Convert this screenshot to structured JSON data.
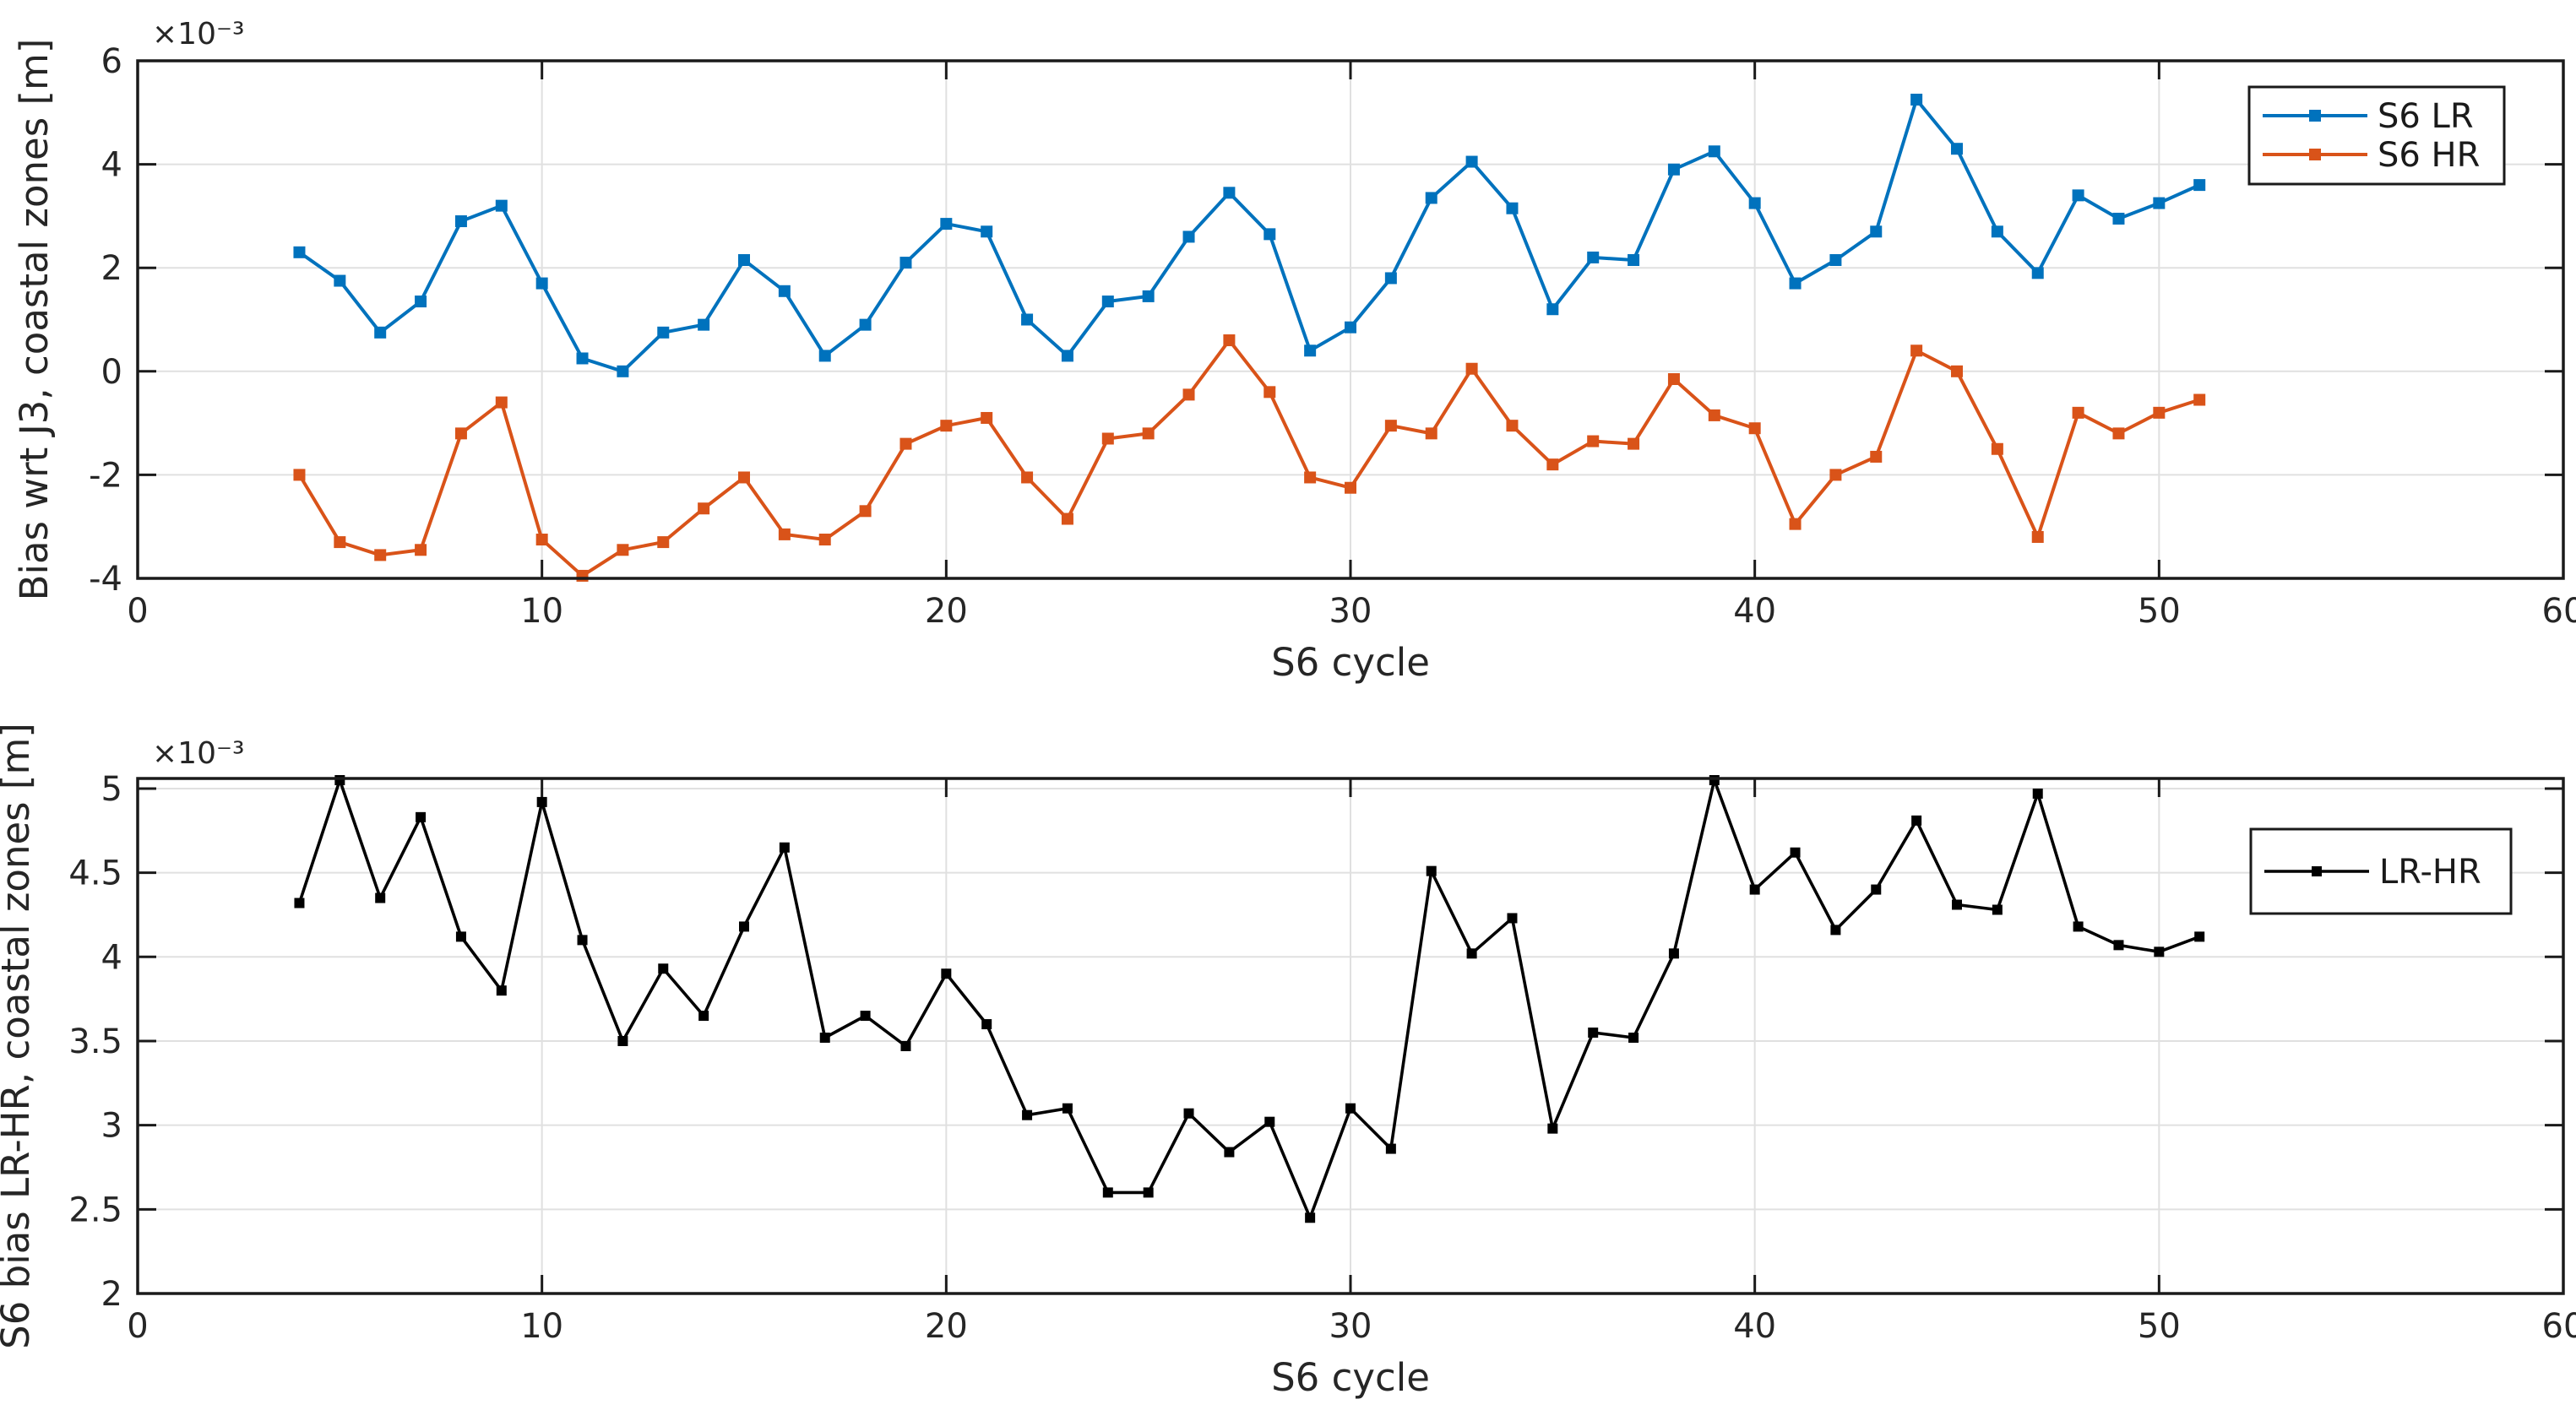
{
  "figure": {
    "background": "#ffffff",
    "axis_color": "#1a1a1a",
    "grid_color": "#e0e0e0",
    "tick_text_color": "#262626"
  },
  "chart_data": [
    {
      "type": "line",
      "title": "",
      "xlabel": "S6 cycle",
      "ylabel": "Bias wrt J3, coastal zones [m]",
      "exponent_label": "×10⁻³",
      "xlim": [
        0,
        60
      ],
      "ylim": [
        -4,
        6
      ],
      "xticks": [
        0,
        10,
        20,
        30,
        40,
        50,
        60
      ],
      "yticks": [
        -4,
        -2,
        0,
        2,
        4,
        6
      ],
      "grid": true,
      "legend_position": "top-right",
      "x": [
        4,
        5,
        6,
        7,
        8,
        9,
        10,
        11,
        12,
        13,
        14,
        15,
        16,
        17,
        18,
        19,
        20,
        21,
        22,
        23,
        24,
        25,
        26,
        27,
        28,
        29,
        30,
        31,
        32,
        33,
        34,
        35,
        36,
        37,
        38,
        39,
        40,
        41,
        42,
        43,
        44,
        45,
        46,
        47,
        48,
        49,
        50,
        51
      ],
      "series": [
        {
          "name": "S6 LR",
          "color": "#0072BD",
          "marker": "square",
          "values": [
            2.3,
            1.75,
            0.75,
            1.35,
            2.9,
            3.2,
            1.7,
            0.25,
            0.0,
            0.75,
            0.9,
            2.15,
            1.55,
            0.3,
            0.9,
            2.1,
            2.85,
            2.7,
            1.0,
            0.3,
            1.35,
            1.45,
            2.6,
            3.45,
            2.65,
            0.4,
            0.85,
            1.8,
            3.35,
            4.05,
            3.15,
            1.2,
            2.2,
            2.15,
            3.9,
            4.25,
            3.25,
            1.7,
            2.15,
            2.7,
            5.25,
            4.3,
            2.7,
            1.9,
            3.4,
            2.95,
            3.25,
            3.6
          ]
        },
        {
          "name": "S6 HR",
          "color": "#D95319",
          "marker": "square",
          "values": [
            -2.0,
            -3.3,
            -3.55,
            -3.45,
            -1.2,
            -0.6,
            -3.25,
            -3.95,
            -3.45,
            -3.3,
            -2.65,
            -2.05,
            -3.15,
            -3.25,
            -2.7,
            -1.4,
            -1.05,
            -0.9,
            -2.05,
            -2.85,
            -1.3,
            -1.2,
            -0.45,
            0.6,
            -0.4,
            -2.05,
            -2.25,
            -1.05,
            -1.2,
            0.05,
            -1.05,
            -1.8,
            -1.35,
            -1.4,
            -0.15,
            -0.85,
            -1.1,
            -2.95,
            -2.0,
            -1.65,
            0.4,
            0.0,
            -1.5,
            -3.2,
            -0.8,
            -1.2,
            -0.8,
            -0.55
          ]
        }
      ]
    },
    {
      "type": "line",
      "title": "",
      "xlabel": "S6 cycle",
      "ylabel": "S6 bias LR-HR, coastal zones [m]",
      "exponent_label": "×10⁻³",
      "xlim": [
        0,
        60
      ],
      "ylim": [
        2,
        5.06
      ],
      "xticks": [
        0,
        10,
        20,
        30,
        40,
        50,
        60
      ],
      "yticks": [
        2,
        2.5,
        3,
        3.5,
        4,
        4.5,
        5
      ],
      "grid": true,
      "legend_position": "top-right",
      "x": [
        4,
        5,
        6,
        7,
        8,
        9,
        10,
        11,
        12,
        13,
        14,
        15,
        16,
        17,
        18,
        19,
        20,
        21,
        22,
        23,
        24,
        25,
        26,
        27,
        28,
        29,
        30,
        31,
        32,
        33,
        34,
        35,
        36,
        37,
        38,
        39,
        40,
        41,
        42,
        43,
        44,
        45,
        46,
        47,
        48,
        49,
        50,
        51
      ],
      "series": [
        {
          "name": "LR-HR",
          "color": "#000000",
          "marker": "square",
          "values": [
            4.32,
            5.05,
            4.35,
            4.83,
            4.12,
            3.8,
            4.92,
            4.1,
            3.5,
            3.93,
            3.65,
            4.18,
            4.65,
            3.52,
            3.65,
            3.47,
            3.9,
            3.6,
            3.06,
            3.1,
            2.6,
            2.6,
            3.07,
            2.84,
            3.02,
            2.45,
            3.1,
            2.86,
            4.51,
            4.02,
            4.23,
            2.98,
            3.55,
            3.52,
            4.02,
            5.05,
            4.4,
            4.62,
            4.16,
            4.4,
            4.81,
            4.31,
            4.28,
            4.97,
            4.18,
            4.07,
            4.03,
            4.12
          ]
        }
      ]
    }
  ]
}
